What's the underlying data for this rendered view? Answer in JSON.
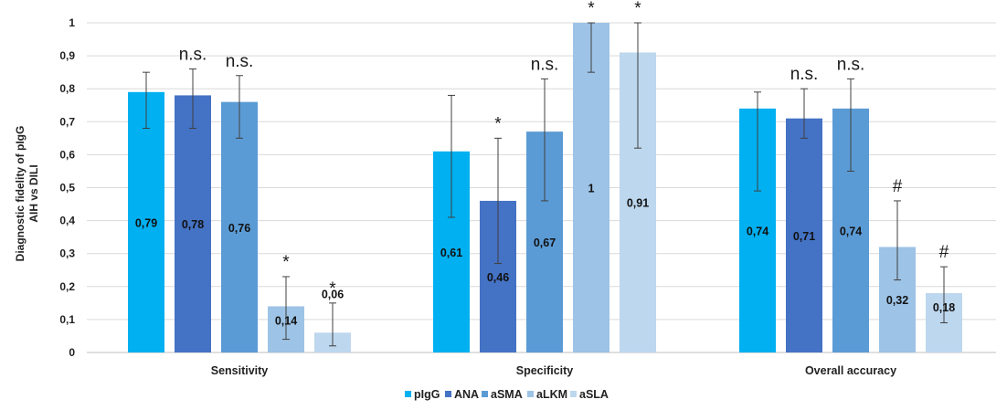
{
  "chart_data": {
    "type": "bar",
    "title": "",
    "ylabel_line1": "Diagnostic fidelity of pIgG",
    "ylabel_line2": "AIH vs DILI",
    "xlabel": "",
    "ylim": [
      0,
      1
    ],
    "yticks": [
      "0",
      "0,1",
      "0,2",
      "0,3",
      "0,4",
      "0,5",
      "0,6",
      "0,7",
      "0,8",
      "0,9",
      "1"
    ],
    "categories": [
      "Sensitivity",
      "Specificity",
      "Overall accuracy"
    ],
    "series": [
      {
        "name": "pIgG",
        "color": "#00b0f0",
        "values": [
          0.79,
          0.61,
          0.74
        ],
        "labels": [
          "0,79",
          "0,61",
          "0,74"
        ],
        "err_low": [
          0.68,
          0.41,
          0.49
        ],
        "err_high": [
          0.85,
          0.78,
          0.79
        ],
        "annotations": [
          "",
          "",
          ""
        ]
      },
      {
        "name": "ANA",
        "color": "#4472c4",
        "values": [
          0.78,
          0.46,
          0.71
        ],
        "labels": [
          "0,78",
          "0,46",
          "0,71"
        ],
        "err_low": [
          0.68,
          0.27,
          0.65
        ],
        "err_high": [
          0.86,
          0.65,
          0.8
        ],
        "annotations": [
          "n.s.",
          "*",
          "n.s."
        ]
      },
      {
        "name": "aSMA",
        "color": "#5b9bd5",
        "values": [
          0.76,
          0.67,
          0.74
        ],
        "labels": [
          "0,76",
          "0,67",
          "0,74"
        ],
        "err_low": [
          0.65,
          0.46,
          0.55
        ],
        "err_high": [
          0.84,
          0.83,
          0.83
        ],
        "annotations": [
          "n.s.",
          "n.s.",
          "n.s."
        ]
      },
      {
        "name": "aLKM",
        "color": "#9dc3e6",
        "values": [
          0.14,
          1,
          0.32
        ],
        "labels": [
          "0,14",
          "1",
          "0,32"
        ],
        "err_low": [
          0.04,
          0.85,
          0.22
        ],
        "err_high": [
          0.23,
          1.0,
          0.46
        ],
        "annotations": [
          "*",
          "*",
          "#"
        ]
      },
      {
        "name": "aSLA",
        "color": "#bdd7ee",
        "values": [
          0.06,
          0.91,
          0.18
        ],
        "labels": [
          "0,06",
          "0,91",
          "0,18"
        ],
        "err_low": [
          0.02,
          0.62,
          0.09
        ],
        "err_high": [
          0.15,
          1.0,
          0.26
        ],
        "annotations": [
          "*",
          "*",
          "#"
        ]
      }
    ],
    "legend_position": "bottom",
    "grid": true
  },
  "colors": {
    "grid": "#d9d9d9",
    "axis": "#bfbfbf",
    "errorbar": "#404040"
  }
}
